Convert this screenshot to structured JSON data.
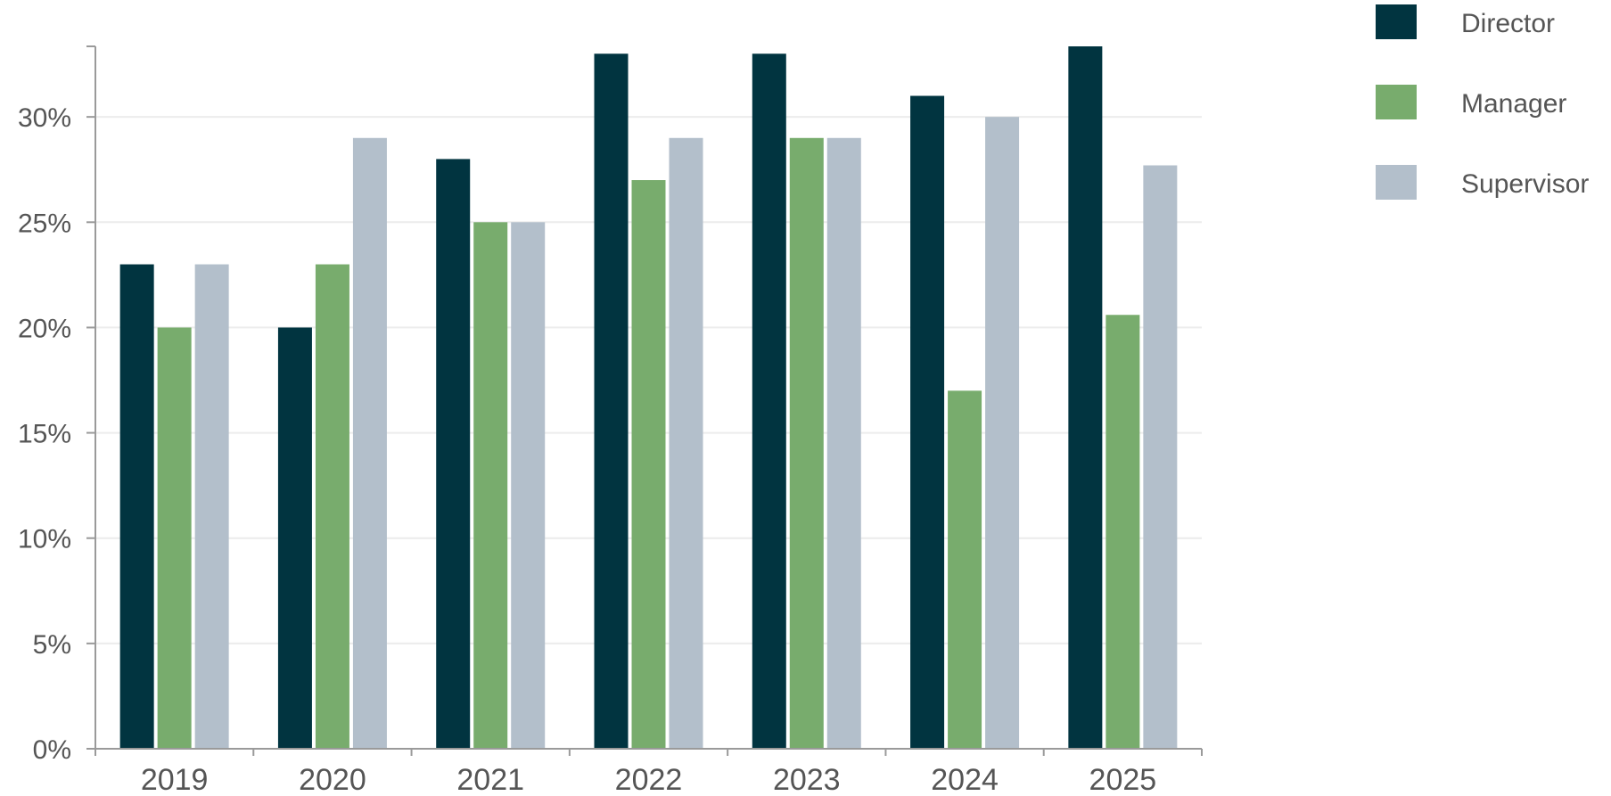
{
  "chart_data": {
    "type": "bar",
    "title": "",
    "xlabel": "",
    "ylabel": "",
    "categories": [
      "2019",
      "2020",
      "2021",
      "2022",
      "2023",
      "2024",
      "2025"
    ],
    "series": [
      {
        "name": "Director",
        "color": "#013440",
        "values": [
          0.23,
          0.2,
          0.28,
          0.33,
          0.33,
          0.31,
          0.3335
        ]
      },
      {
        "name": "Manager",
        "color": "#78AC6D",
        "values": [
          0.2,
          0.23,
          0.25,
          0.27,
          0.29,
          0.17,
          0.206
        ]
      },
      {
        "name": "Supervisor",
        "color": "#B3BFCB",
        "values": [
          0.23,
          0.29,
          0.25,
          0.29,
          0.29,
          0.3,
          0.277
        ]
      }
    ],
    "ylim": [
      0,
      0.3335
    ],
    "yticks": [
      0,
      0.05,
      0.1,
      0.15,
      0.2,
      0.25,
      0.3
    ],
    "ytick_labels": [
      "0%",
      "5%",
      "10%",
      "15%",
      "20%",
      "25%",
      "30%"
    ],
    "grid": true,
    "legend": "top-right"
  }
}
